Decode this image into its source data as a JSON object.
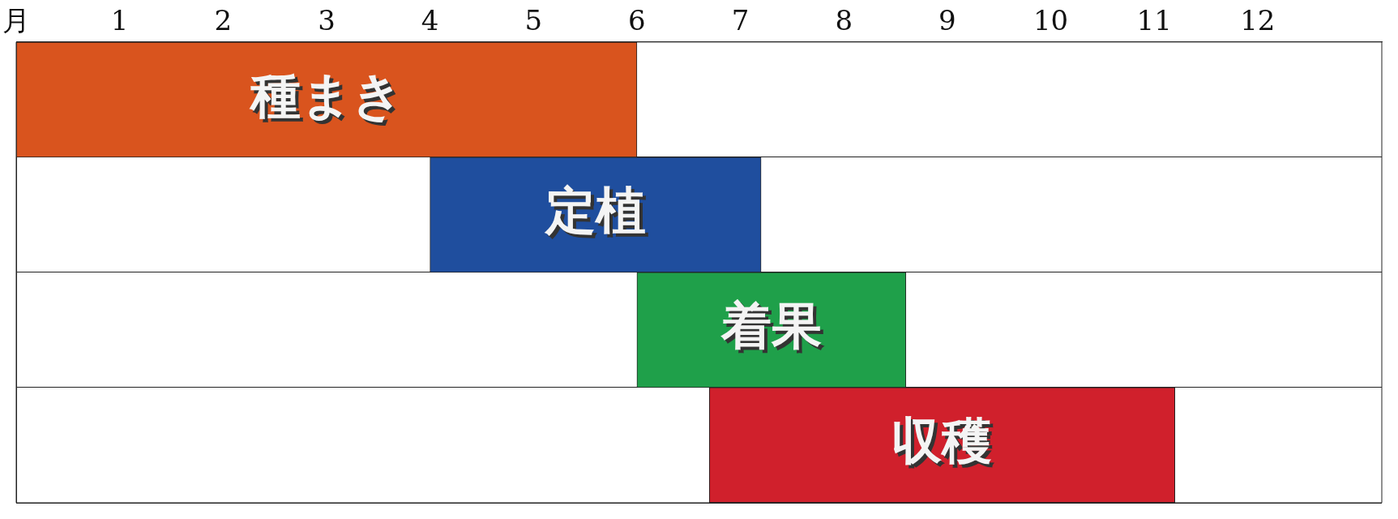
{
  "chart_data": {
    "type": "bar",
    "orientation": "horizontal",
    "categories": [
      "種まき",
      "定植",
      "着果",
      "収穫"
    ],
    "base": [
      0,
      4.0,
      6.0,
      6.7
    ],
    "values": [
      6.0,
      3.2,
      2.6,
      4.5
    ],
    "colors": [
      "#d9541e",
      "#1f4e9e",
      "#1fa04a",
      "#d0202c"
    ],
    "xlim": [
      0,
      13.2
    ],
    "xticks": [
      {
        "value": 0,
        "label": "月"
      },
      1,
      2,
      3,
      4,
      5,
      6,
      7,
      8,
      9,
      10,
      11,
      12
    ],
    "grid": "y",
    "tick_labels": "x"
  }
}
